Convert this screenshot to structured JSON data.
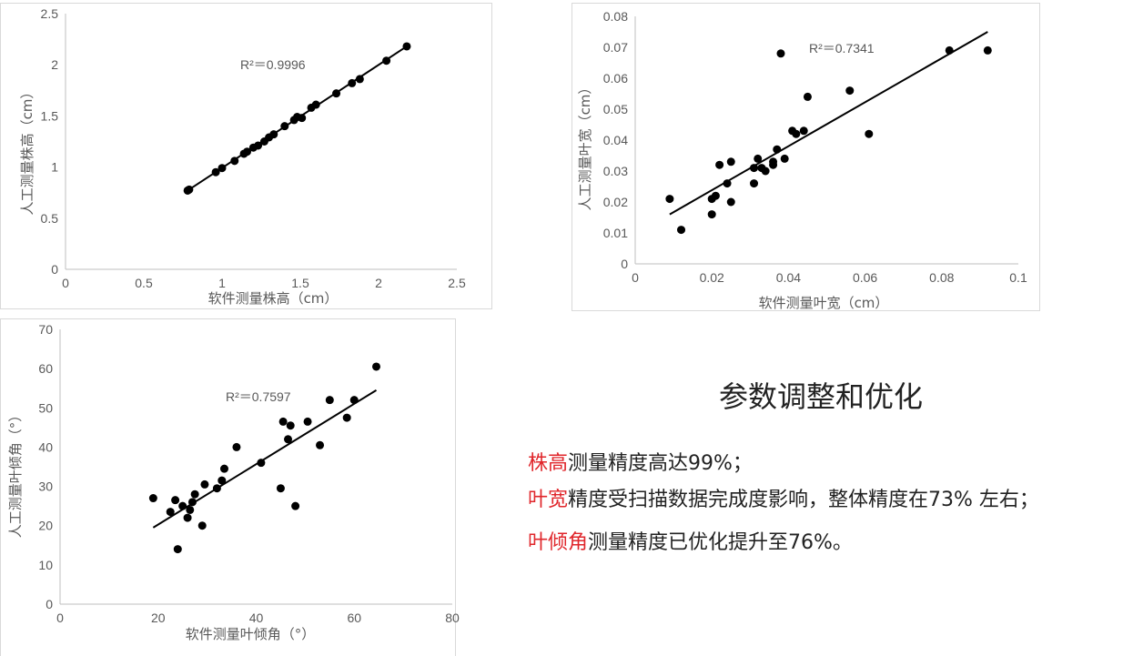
{
  "chart_data": [
    {
      "type": "scatter",
      "xlabel": "软件测量株高（cm）",
      "ylabel": "人工测量株高（cm）",
      "annotation": "R²＝0.9996",
      "xlim": [
        0,
        2.5
      ],
      "ylim": [
        0,
        2.5
      ],
      "x_ticks": [
        "0",
        "0.5",
        "1",
        "1.5",
        "2",
        "2.5"
      ],
      "y_ticks": [
        "0",
        "0.5",
        "1",
        "1.5",
        "2",
        "2.5"
      ],
      "trendline": [
        [
          0.78,
          0.77
        ],
        [
          2.18,
          2.18
        ]
      ],
      "points": [
        [
          0.78,
          0.77
        ],
        [
          0.79,
          0.78
        ],
        [
          0.96,
          0.95
        ],
        [
          1.0,
          0.99
        ],
        [
          1.08,
          1.06
        ],
        [
          1.14,
          1.13
        ],
        [
          1.16,
          1.15
        ],
        [
          1.2,
          1.19
        ],
        [
          1.23,
          1.21
        ],
        [
          1.27,
          1.25
        ],
        [
          1.3,
          1.29
        ],
        [
          1.33,
          1.32
        ],
        [
          1.4,
          1.4
        ],
        [
          1.46,
          1.46
        ],
        [
          1.48,
          1.49
        ],
        [
          1.51,
          1.48
        ],
        [
          1.57,
          1.58
        ],
        [
          1.6,
          1.61
        ],
        [
          1.73,
          1.72
        ],
        [
          1.83,
          1.82
        ],
        [
          1.88,
          1.86
        ],
        [
          2.05,
          2.04
        ],
        [
          2.18,
          2.18
        ]
      ],
      "grid": false
    },
    {
      "type": "scatter",
      "xlabel": "软件测量叶宽（cm）",
      "ylabel": "人工测量叶宽（cm）",
      "annotation": "R²＝0.7341",
      "xlim": [
        0,
        0.1
      ],
      "ylim": [
        0,
        0.08
      ],
      "x_ticks": [
        "0",
        "0.02",
        "0.04",
        "0.06",
        "0.08",
        "0.1"
      ],
      "y_ticks": [
        "0",
        "0.01",
        "0.02",
        "0.03",
        "0.04",
        "0.05",
        "0.06",
        "0.07",
        "0.08"
      ],
      "trendline": [
        [
          0.009,
          0.016
        ],
        [
          0.092,
          0.075
        ]
      ],
      "points": [
        [
          0.009,
          0.021
        ],
        [
          0.012,
          0.011
        ],
        [
          0.02,
          0.016
        ],
        [
          0.02,
          0.021
        ],
        [
          0.021,
          0.022
        ],
        [
          0.022,
          0.032
        ],
        [
          0.024,
          0.026
        ],
        [
          0.025,
          0.033
        ],
        [
          0.025,
          0.02
        ],
        [
          0.031,
          0.026
        ],
        [
          0.031,
          0.031
        ],
        [
          0.032,
          0.034
        ],
        [
          0.033,
          0.031
        ],
        [
          0.034,
          0.03
        ],
        [
          0.036,
          0.032
        ],
        [
          0.036,
          0.033
        ],
        [
          0.037,
          0.037
        ],
        [
          0.038,
          0.068
        ],
        [
          0.039,
          0.034
        ],
        [
          0.041,
          0.043
        ],
        [
          0.042,
          0.042
        ],
        [
          0.044,
          0.043
        ],
        [
          0.045,
          0.054
        ],
        [
          0.056,
          0.056
        ],
        [
          0.061,
          0.042
        ],
        [
          0.082,
          0.069
        ],
        [
          0.092,
          0.069
        ]
      ],
      "grid": false
    },
    {
      "type": "scatter",
      "xlabel": "软件测量叶倾角（°）",
      "ylabel": "人工测量叶倾角（°）",
      "annotation": "R²＝0.7597",
      "xlim": [
        0,
        80
      ],
      "ylim": [
        0,
        70
      ],
      "x_ticks": [
        "0",
        "20",
        "40",
        "60",
        "80"
      ],
      "y_ticks": [
        "0",
        "10",
        "20",
        "30",
        "40",
        "50",
        "60",
        "70"
      ],
      "trendline": [
        [
          19,
          19.5
        ],
        [
          64.5,
          54.5
        ]
      ],
      "points": [
        [
          19,
          27
        ],
        [
          22.5,
          23.5
        ],
        [
          23.5,
          26.5
        ],
        [
          24,
          14
        ],
        [
          25,
          25
        ],
        [
          26,
          22
        ],
        [
          26.5,
          24
        ],
        [
          27,
          26
        ],
        [
          27.5,
          28
        ],
        [
          29,
          20
        ],
        [
          29.5,
          30.5
        ],
        [
          32,
          29.5
        ],
        [
          33,
          31.5
        ],
        [
          33.5,
          34.5
        ],
        [
          36,
          40
        ],
        [
          41,
          36
        ],
        [
          45,
          29.5
        ],
        [
          45.5,
          46.5
        ],
        [
          46.5,
          42
        ],
        [
          47,
          45.5
        ],
        [
          48,
          25
        ],
        [
          50.5,
          46.5
        ],
        [
          53,
          40.5
        ],
        [
          55,
          52
        ],
        [
          58.5,
          47.5
        ],
        [
          60,
          52
        ],
        [
          64.5,
          60.5
        ]
      ],
      "grid": false
    }
  ],
  "notes": {
    "title": "参数调整和优化",
    "lines": [
      {
        "highlight": "株高",
        "rest": "测量精度高达99%；"
      },
      {
        "highlight": "叶宽",
        "rest": "精度受扫描数据完成度影响，整体精度在73% 左右；"
      },
      {
        "highlight": "叶倾角",
        "rest": "测量精度已优化提升至76%。"
      }
    ]
  },
  "colors": {
    "highlight": "#e0262b",
    "points": "#000000",
    "text": "#595959"
  }
}
